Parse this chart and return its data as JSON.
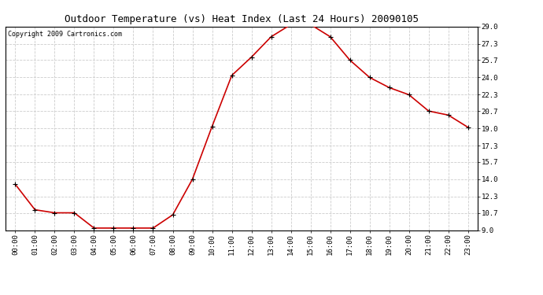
{
  "title": "Outdoor Temperature (vs) Heat Index (Last 24 Hours) 20090105",
  "copyright_text": "Copyright 2009 Cartronics.com",
  "x_labels": [
    "00:00",
    "01:00",
    "02:00",
    "03:00",
    "04:00",
    "05:00",
    "06:00",
    "07:00",
    "08:00",
    "09:00",
    "10:00",
    "11:00",
    "12:00",
    "13:00",
    "14:00",
    "15:00",
    "16:00",
    "17:00",
    "18:00",
    "19:00",
    "20:00",
    "21:00",
    "22:00",
    "23:00"
  ],
  "y_values": [
    13.5,
    11.0,
    10.7,
    10.7,
    9.2,
    9.2,
    9.2,
    9.2,
    10.5,
    14.0,
    19.2,
    24.2,
    26.0,
    28.0,
    29.2,
    29.2,
    28.0,
    25.7,
    24.0,
    23.0,
    22.3,
    20.7,
    20.3,
    19.1
  ],
  "line_color": "#cc0000",
  "marker": "+",
  "marker_color": "#000000",
  "marker_size": 4,
  "y_ticks": [
    9.0,
    10.7,
    12.3,
    14.0,
    15.7,
    17.3,
    19.0,
    20.7,
    22.3,
    24.0,
    25.7,
    27.3,
    29.0
  ],
  "ylim": [
    9.0,
    29.0
  ],
  "grid_color": "#cccccc",
  "background_color": "#ffffff",
  "title_fontsize": 9,
  "copyright_fontsize": 6,
  "tick_fontsize": 6.5,
  "line_width": 1.2
}
